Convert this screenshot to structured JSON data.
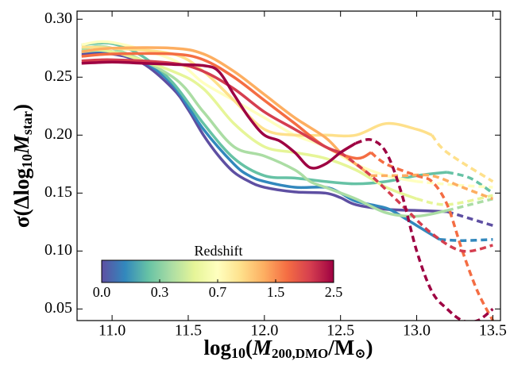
{
  "chart_data": {
    "type": "line",
    "xlabel": [
      "log",
      "10",
      "(",
      "M",
      "200,DMO",
      "/M",
      "⊙",
      ")"
    ],
    "ylabel": [
      "σ(Δlog",
      "10",
      "M",
      "star",
      ")"
    ],
    "xlim": [
      10.77,
      13.55
    ],
    "xticks": [
      {
        "value": 11,
        "label": "11.0"
      },
      11.5,
      {
        "value": 12,
        "label": "12.0"
      },
      12.5,
      {
        "value": 13,
        "label": "13.0"
      },
      13.5
    ],
    "ylim": [
      0.04,
      0.307
    ],
    "yticks": [
      0.05,
      {
        "value": 0.1,
        "label": "0.10"
      },
      0.15,
      {
        "value": 0.2,
        "label": "0.20"
      },
      0.25,
      {
        "value": 0.3,
        "label": "0.30"
      }
    ],
    "colorbar": {
      "label": "Redshift",
      "ticks": [
        "0.0",
        "0.3",
        "0.7",
        "1.5",
        "2.5"
      ],
      "colors": [
        "#5e4fa2",
        "#3288bd",
        "#66c2a5",
        "#abdda4",
        "#e6f598",
        "#ffffbf",
        "#fee08b",
        "#fdae61",
        "#f46d43",
        "#d53e4f",
        "#9e0142"
      ]
    },
    "series": [
      {
        "color": "#5e4fa2",
        "dashed": false,
        "x": [
          10.8,
          11.0,
          11.2,
          11.4,
          11.5,
          11.6,
          11.7,
          11.8,
          11.9,
          12.0,
          12.2,
          12.4,
          12.5,
          12.6,
          12.8,
          13.0,
          13.2
        ],
        "values": [
          0.27,
          0.27,
          0.262,
          0.24,
          0.222,
          0.2,
          0.182,
          0.168,
          0.16,
          0.155,
          0.151,
          0.15,
          0.146,
          0.14,
          0.136,
          0.135,
          0.134
        ]
      },
      {
        "color": "#5e4fa2",
        "dashed": true,
        "x": [
          13.2,
          13.35,
          13.5
        ],
        "values": [
          0.134,
          0.128,
          0.122
        ]
      },
      {
        "color": "#3288bd",
        "dashed": false,
        "x": [
          10.8,
          11.0,
          11.2,
          11.4,
          11.6,
          11.8,
          11.9,
          12.0,
          12.2,
          12.4,
          12.5,
          12.6,
          12.8,
          12.9,
          13.0,
          13.15
        ],
        "values": [
          0.272,
          0.272,
          0.264,
          0.243,
          0.205,
          0.175,
          0.165,
          0.16,
          0.155,
          0.155,
          0.15,
          0.143,
          0.137,
          0.13,
          0.122,
          0.11
        ]
      },
      {
        "color": "#3288bd",
        "dashed": true,
        "x": [
          13.15,
          13.3,
          13.5
        ],
        "values": [
          0.11,
          0.109,
          0.11
        ]
      },
      {
        "color": "#66c2a5",
        "dashed": false,
        "x": [
          10.8,
          11.0,
          11.2,
          11.4,
          11.6,
          11.8,
          12.0,
          12.2,
          12.4,
          12.6,
          12.8,
          13.0,
          13.2
        ],
        "values": [
          0.278,
          0.279,
          0.268,
          0.245,
          0.21,
          0.18,
          0.165,
          0.163,
          0.16,
          0.158,
          0.16,
          0.165,
          0.168
        ]
      },
      {
        "color": "#66c2a5",
        "dashed": true,
        "x": [
          13.2,
          13.35,
          13.5
        ],
        "values": [
          0.168,
          0.163,
          0.15
        ]
      },
      {
        "color": "#abdda4",
        "dashed": false,
        "x": [
          10.8,
          11.0,
          11.4,
          11.6,
          11.8,
          12.0,
          12.2,
          12.3,
          12.4,
          12.6,
          12.8,
          13.0,
          13.2
        ],
        "values": [
          0.274,
          0.275,
          0.25,
          0.22,
          0.19,
          0.182,
          0.17,
          0.16,
          0.155,
          0.145,
          0.133,
          0.13,
          0.135
        ]
      },
      {
        "color": "#abdda4",
        "dashed": true,
        "x": [
          13.2,
          13.35,
          13.5
        ],
        "values": [
          0.135,
          0.14,
          0.145
        ]
      },
      {
        "color": "#e6f598",
        "dashed": false,
        "x": [
          10.8,
          11.0,
          11.4,
          11.6,
          11.8,
          12.0,
          12.2,
          12.4,
          12.6,
          12.8,
          13.0
        ],
        "values": [
          0.272,
          0.272,
          0.255,
          0.24,
          0.21,
          0.19,
          0.185,
          0.18,
          0.17,
          0.155,
          0.145
        ]
      },
      {
        "color": "#e6f598",
        "dashed": true,
        "x": [
          13.0,
          13.2,
          13.5
        ],
        "values": [
          0.145,
          0.14,
          0.148
        ]
      },
      {
        "color": "#ffffbf",
        "dashed": false,
        "x": [
          10.8,
          11.0,
          11.4,
          11.6,
          11.8,
          12.0,
          12.2,
          12.4,
          12.6,
          12.8,
          13.0
        ],
        "values": [
          0.278,
          0.28,
          0.265,
          0.245,
          0.23,
          0.215,
          0.2,
          0.19,
          0.175,
          0.165,
          0.16
        ]
      },
      {
        "color": "#ffffbf",
        "dashed": true,
        "x": [
          13.0,
          13.25,
          13.5
        ],
        "values": [
          0.16,
          0.157,
          0.155
        ]
      },
      {
        "color": "#fee08b",
        "dashed": false,
        "x": [
          10.8,
          11.0,
          11.4,
          11.6,
          11.8,
          12.0,
          12.2,
          12.4,
          12.6,
          12.8,
          13.0,
          13.1
        ],
        "values": [
          0.276,
          0.275,
          0.27,
          0.255,
          0.23,
          0.205,
          0.2,
          0.2,
          0.2,
          0.21,
          0.205,
          0.2
        ]
      },
      {
        "color": "#fee08b",
        "dashed": true,
        "x": [
          13.1,
          13.2,
          13.5
        ],
        "values": [
          0.2,
          0.185,
          0.16
        ]
      },
      {
        "color": "#fdae61",
        "dashed": false,
        "x": [
          10.8,
          11.0,
          11.4,
          11.6,
          11.8,
          12.0,
          12.2,
          12.4,
          12.5,
          12.6,
          12.7
        ],
        "values": [
          0.272,
          0.275,
          0.275,
          0.27,
          0.255,
          0.235,
          0.215,
          0.198,
          0.185,
          0.175,
          0.165
        ]
      },
      {
        "color": "#fdae61",
        "dashed": true,
        "x": [
          12.7,
          12.9,
          13.1,
          13.3,
          13.5
        ],
        "values": [
          0.165,
          0.165,
          0.165,
          0.155,
          0.145
        ]
      },
      {
        "color": "#f46d43",
        "dashed": false,
        "x": [
          10.8,
          11.0,
          11.4,
          11.6,
          11.8,
          12.0,
          12.2,
          12.4,
          12.6,
          12.7
        ],
        "values": [
          0.268,
          0.27,
          0.27,
          0.265,
          0.25,
          0.23,
          0.21,
          0.19,
          0.18,
          0.185
        ]
      },
      {
        "color": "#f46d43",
        "dashed": true,
        "x": [
          12.7,
          12.8,
          13.0,
          13.1,
          13.2,
          13.3,
          13.4,
          13.5
        ],
        "values": [
          0.185,
          0.175,
          0.165,
          0.16,
          0.14,
          0.1,
          0.065,
          0.04
        ]
      },
      {
        "color": "#d53e4f",
        "dashed": false,
        "x": [
          10.8,
          11.0,
          11.4,
          11.6,
          11.8,
          12.0,
          12.2,
          12.4,
          12.5
        ],
        "values": [
          0.264,
          0.265,
          0.262,
          0.255,
          0.24,
          0.22,
          0.205,
          0.19,
          0.185
        ]
      },
      {
        "color": "#d53e4f",
        "dashed": true,
        "x": [
          12.5,
          12.7,
          12.9,
          13.1,
          13.3,
          13.5
        ],
        "values": [
          0.185,
          0.165,
          0.14,
          0.115,
          0.1,
          0.105
        ]
      },
      {
        "color": "#9e0142",
        "dashed": false,
        "x": [
          10.8,
          11.0,
          11.2,
          11.4,
          11.6,
          11.7,
          11.8,
          11.9,
          12.0,
          12.1,
          12.2,
          12.3,
          12.4,
          12.5,
          12.6
        ],
        "values": [
          0.262,
          0.263,
          0.262,
          0.261,
          0.26,
          0.255,
          0.235,
          0.215,
          0.2,
          0.195,
          0.185,
          0.172,
          0.175,
          0.185,
          0.193
        ]
      },
      {
        "color": "#9e0142",
        "dashed": true,
        "x": [
          12.6,
          12.7,
          12.8,
          12.9,
          13.0,
          13.1,
          13.2,
          13.3,
          13.4,
          13.5
        ],
        "values": [
          0.193,
          0.196,
          0.185,
          0.15,
          0.1,
          0.065,
          0.05,
          0.04,
          0.04,
          0.05
        ]
      }
    ]
  }
}
